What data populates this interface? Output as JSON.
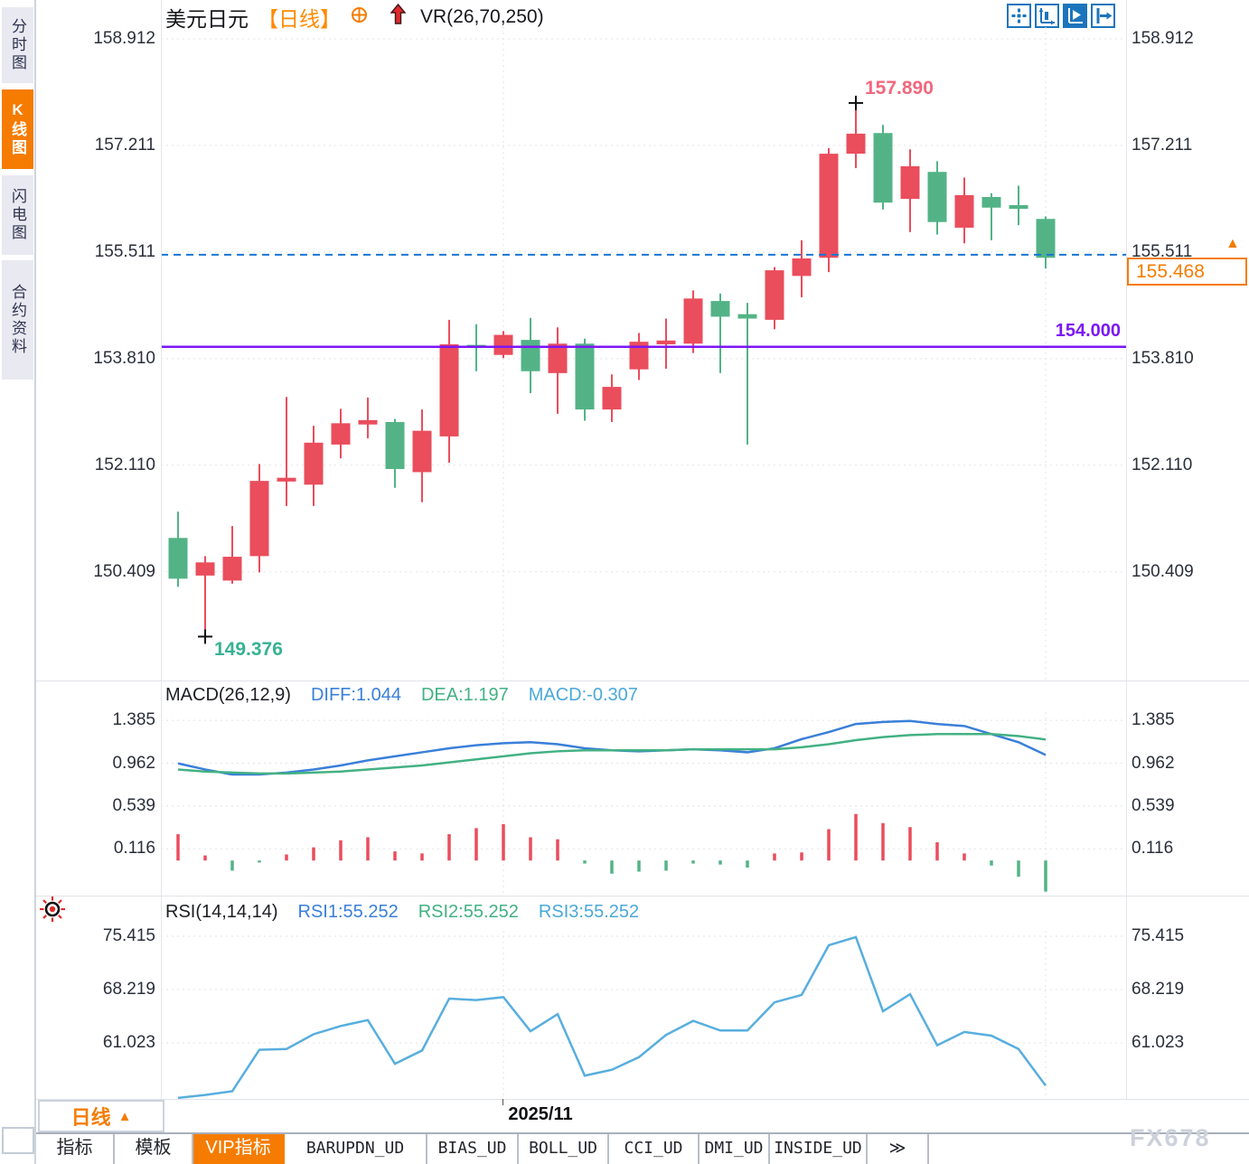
{
  "sidebar": {
    "items": [
      {
        "label": "分时图",
        "active": false
      },
      {
        "label": "K线图",
        "active": true
      },
      {
        "label": "闪电图",
        "active": false
      },
      {
        "label": "合约资料",
        "active": false
      }
    ]
  },
  "header": {
    "symbol": "美元日元",
    "period_tag": "【日线】",
    "indicator": "VR(26,70,250)"
  },
  "toolbar": {
    "icons": [
      {
        "name": "pan-crosshair-icon",
        "active": false
      },
      {
        "name": "axis-zoom-icon",
        "active": false
      },
      {
        "name": "axis-play-icon",
        "active": true
      },
      {
        "name": "shift-right-icon",
        "active": false
      }
    ]
  },
  "annotations": {
    "high": "157.890",
    "low": "149.376",
    "support": "154.000",
    "current_price": "155.468",
    "marker_arrow": "▲"
  },
  "macd_header": {
    "title": "MACD(26,12,9)",
    "diff": "DIFF:1.044",
    "dea": "DEA:1.197",
    "macd": "MACD:-0.307"
  },
  "rsi_header": {
    "title": "RSI(14,14,14)",
    "rsi1": "RSI1:55.252",
    "rsi2": "RSI2:55.252",
    "rsi3": "RSI3:55.252"
  },
  "time_axis": {
    "month_label": "2025/11"
  },
  "period_button": {
    "label": "日线",
    "arrow": "▲"
  },
  "tabs": {
    "active_index": 2,
    "items": [
      {
        "label": "指标",
        "mono": false
      },
      {
        "label": "模板",
        "mono": false
      },
      {
        "label": "VIP指标",
        "mono": false
      },
      {
        "label": "BARUPDN_UD",
        "mono": true
      },
      {
        "label": "BIAS_UD",
        "mono": true
      },
      {
        "label": "BOLL_UD",
        "mono": true
      },
      {
        "label": "CCI_UD",
        "mono": true
      },
      {
        "label": "DMI_UD",
        "mono": true
      },
      {
        "label": "INSIDE_UD",
        "mono": true
      },
      {
        "label": "≫",
        "mono": true
      }
    ]
  },
  "watermark": "FX678",
  "colors": {
    "up": "#ea4d5c",
    "down": "#53b386",
    "accent_orange": "#f57c00",
    "support_purple": "#7c16f5",
    "price_line_blue": "#1976d2",
    "diff_blue": "#3a7fd9",
    "dea_green": "#43b183",
    "rsi_blue": "#58aede",
    "grid": "#dfe3e9"
  },
  "chart_data": [
    {
      "type": "candlestick",
      "title": "美元日元 日线",
      "y_tick_labels": [
        "158.912",
        "157.211",
        "155.511",
        "153.810",
        "152.110",
        "150.409"
      ],
      "ylim": [
        148.69,
        159.1
      ],
      "month_gridline_indices": [
        12,
        32
      ],
      "current_price": 155.468,
      "support_line": 154.0,
      "high_marker": {
        "index": 25,
        "price": 157.89
      },
      "low_marker": {
        "index": 1,
        "price": 149.376
      },
      "candles": [
        [
          150.95,
          151.37,
          150.17,
          150.3
        ],
        [
          150.35,
          150.66,
          149.376,
          150.56
        ],
        [
          150.27,
          151.14,
          150.22,
          150.65
        ],
        [
          150.66,
          152.13,
          150.4,
          151.86
        ],
        [
          151.85,
          153.2,
          151.46,
          151.91
        ],
        [
          151.8,
          152.74,
          151.46,
          152.47
        ],
        [
          152.44,
          153.01,
          152.22,
          152.78
        ],
        [
          152.76,
          153.19,
          152.54,
          152.83
        ],
        [
          152.8,
          152.85,
          151.75,
          152.05
        ],
        [
          152.0,
          153.0,
          151.52,
          152.66
        ],
        [
          152.57,
          154.43,
          152.15,
          154.04
        ],
        [
          154.03,
          154.36,
          153.61,
          153.98
        ],
        [
          153.87,
          154.25,
          153.82,
          154.19
        ],
        [
          154.11,
          154.46,
          153.26,
          153.61
        ],
        [
          153.58,
          154.31,
          152.93,
          154.05
        ],
        [
          154.05,
          154.13,
          152.82,
          153.0
        ],
        [
          153.0,
          153.56,
          152.8,
          153.36
        ],
        [
          153.64,
          154.22,
          153.47,
          154.08
        ],
        [
          154.04,
          154.45,
          153.65,
          154.1
        ],
        [
          154.05,
          154.9,
          153.9,
          154.77
        ],
        [
          154.73,
          154.85,
          153.58,
          154.48
        ],
        [
          154.52,
          154.7,
          152.44,
          154.45
        ],
        [
          154.43,
          155.27,
          154.28,
          155.22
        ],
        [
          155.13,
          155.7,
          154.79,
          155.41
        ],
        [
          155.42,
          157.17,
          155.19,
          157.08
        ],
        [
          157.08,
          157.89,
          156.85,
          157.4
        ],
        [
          157.41,
          157.54,
          156.19,
          156.3
        ],
        [
          156.36,
          157.15,
          155.83,
          156.88
        ],
        [
          156.79,
          156.96,
          155.79,
          155.99
        ],
        [
          155.9,
          156.7,
          155.65,
          156.42
        ],
        [
          156.39,
          156.45,
          155.7,
          156.22
        ],
        [
          156.26,
          156.57,
          155.94,
          156.2
        ],
        [
          156.04,
          156.08,
          155.25,
          155.42
        ]
      ]
    },
    {
      "type": "macd",
      "title": "MACD(26,12,9)",
      "y_tick_labels": [
        "1.385",
        "0.962",
        "0.539",
        "0.116"
      ],
      "ylim": [
        -0.32,
        1.467
      ],
      "diff": [
        0.96,
        0.9,
        0.85,
        0.85,
        0.87,
        0.9,
        0.94,
        0.99,
        1.03,
        1.07,
        1.11,
        1.14,
        1.16,
        1.17,
        1.15,
        1.11,
        1.09,
        1.08,
        1.09,
        1.1,
        1.09,
        1.07,
        1.11,
        1.2,
        1.27,
        1.35,
        1.37,
        1.38,
        1.35,
        1.33,
        1.25,
        1.17,
        1.044
      ],
      "dea": [
        0.9,
        0.88,
        0.87,
        0.86,
        0.86,
        0.87,
        0.88,
        0.9,
        0.92,
        0.94,
        0.97,
        1.0,
        1.03,
        1.06,
        1.08,
        1.09,
        1.09,
        1.09,
        1.09,
        1.1,
        1.1,
        1.1,
        1.1,
        1.12,
        1.15,
        1.19,
        1.22,
        1.24,
        1.25,
        1.25,
        1.25,
        1.23,
        1.197
      ],
      "histogram": [
        0.26,
        0.05,
        -0.1,
        -0.02,
        0.06,
        0.13,
        0.2,
        0.23,
        0.09,
        0.07,
        0.26,
        0.32,
        0.36,
        0.23,
        0.21,
        -0.03,
        -0.13,
        -0.11,
        -0.1,
        -0.03,
        -0.04,
        -0.07,
        0.07,
        0.08,
        0.31,
        0.46,
        0.37,
        0.33,
        0.18,
        0.07,
        -0.05,
        -0.16,
        -0.307
      ]
    },
    {
      "type": "rsi",
      "title": "RSI(14,14,14)",
      "y_tick_labels": [
        "75.415",
        "68.219",
        "61.023"
      ],
      "ylim": [
        53.46,
        76.15
      ],
      "values": [
        53.6,
        54.0,
        54.5,
        60.1,
        60.2,
        62.2,
        63.3,
        64.1,
        58.2,
        60.0,
        67.0,
        66.8,
        67.2,
        62.6,
        64.9,
        56.6,
        57.4,
        59.1,
        62.1,
        64.0,
        62.7,
        62.7,
        66.5,
        67.5,
        74.2,
        75.3,
        65.3,
        67.6,
        60.7,
        62.5,
        62.0,
        60.2,
        55.252
      ]
    }
  ]
}
